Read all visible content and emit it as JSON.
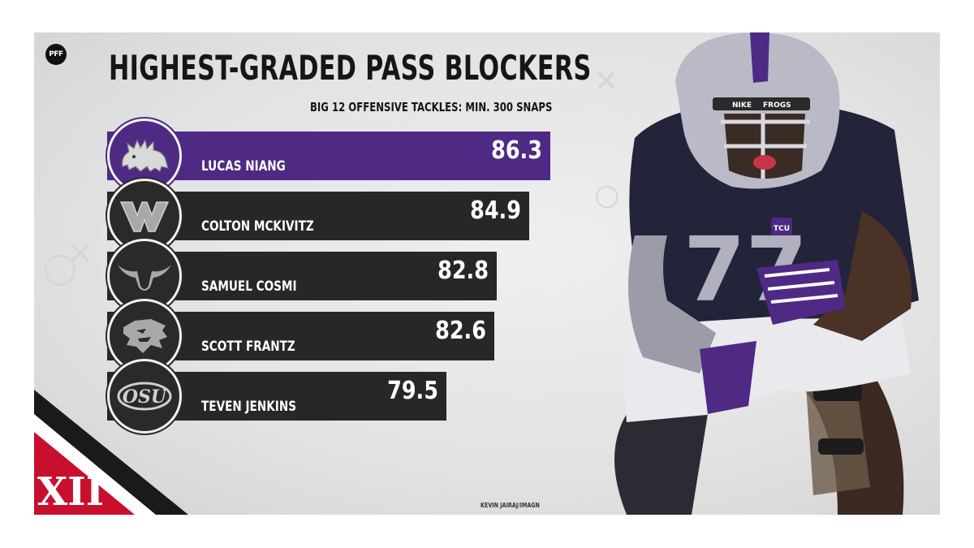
{
  "brand": {
    "logo_text": "PFF"
  },
  "header": {
    "title": "HIGHEST-GRADED PASS BLOCKERS",
    "subtitle": "BIG 12 OFFENSIVE TACKLES: MIN. 300 SNAPS"
  },
  "chart_data": {
    "type": "bar",
    "orientation": "horizontal",
    "title": "HIGHEST-GRADED PASS BLOCKERS",
    "subtitle": "BIG 12 OFFENSIVE TACKLES: MIN. 300 SNAPS",
    "categories": [
      "LUCAS NIANG",
      "COLTON MCKIVITZ",
      "SAMUEL COSMI",
      "SCOTT FRANTZ",
      "TEVEN JENKINS"
    ],
    "values": [
      86.3,
      84.9,
      82.8,
      82.6,
      79.5
    ],
    "teams": [
      "TCU",
      "West Virginia",
      "Texas",
      "Kansas State",
      "Oklahoma State"
    ],
    "team_logo_icons": [
      "horned-frog-icon",
      "wv-logo-icon",
      "longhorn-icon",
      "wildcat-icon",
      "osu-logo-icon"
    ],
    "highlight_color": "#4e2a84",
    "bar_color": "#272727",
    "legend": "none",
    "grid": false
  },
  "logos": {
    "osu_text": "OSU",
    "conference_text": "XII"
  },
  "player": {
    "jersey_number": "77",
    "helmet_text": "FROGS",
    "helmet_brand": "NIKE",
    "jersey_badge": "TCU"
  },
  "photo_credit": "KEVIN JAIRAJ/IMAGN"
}
